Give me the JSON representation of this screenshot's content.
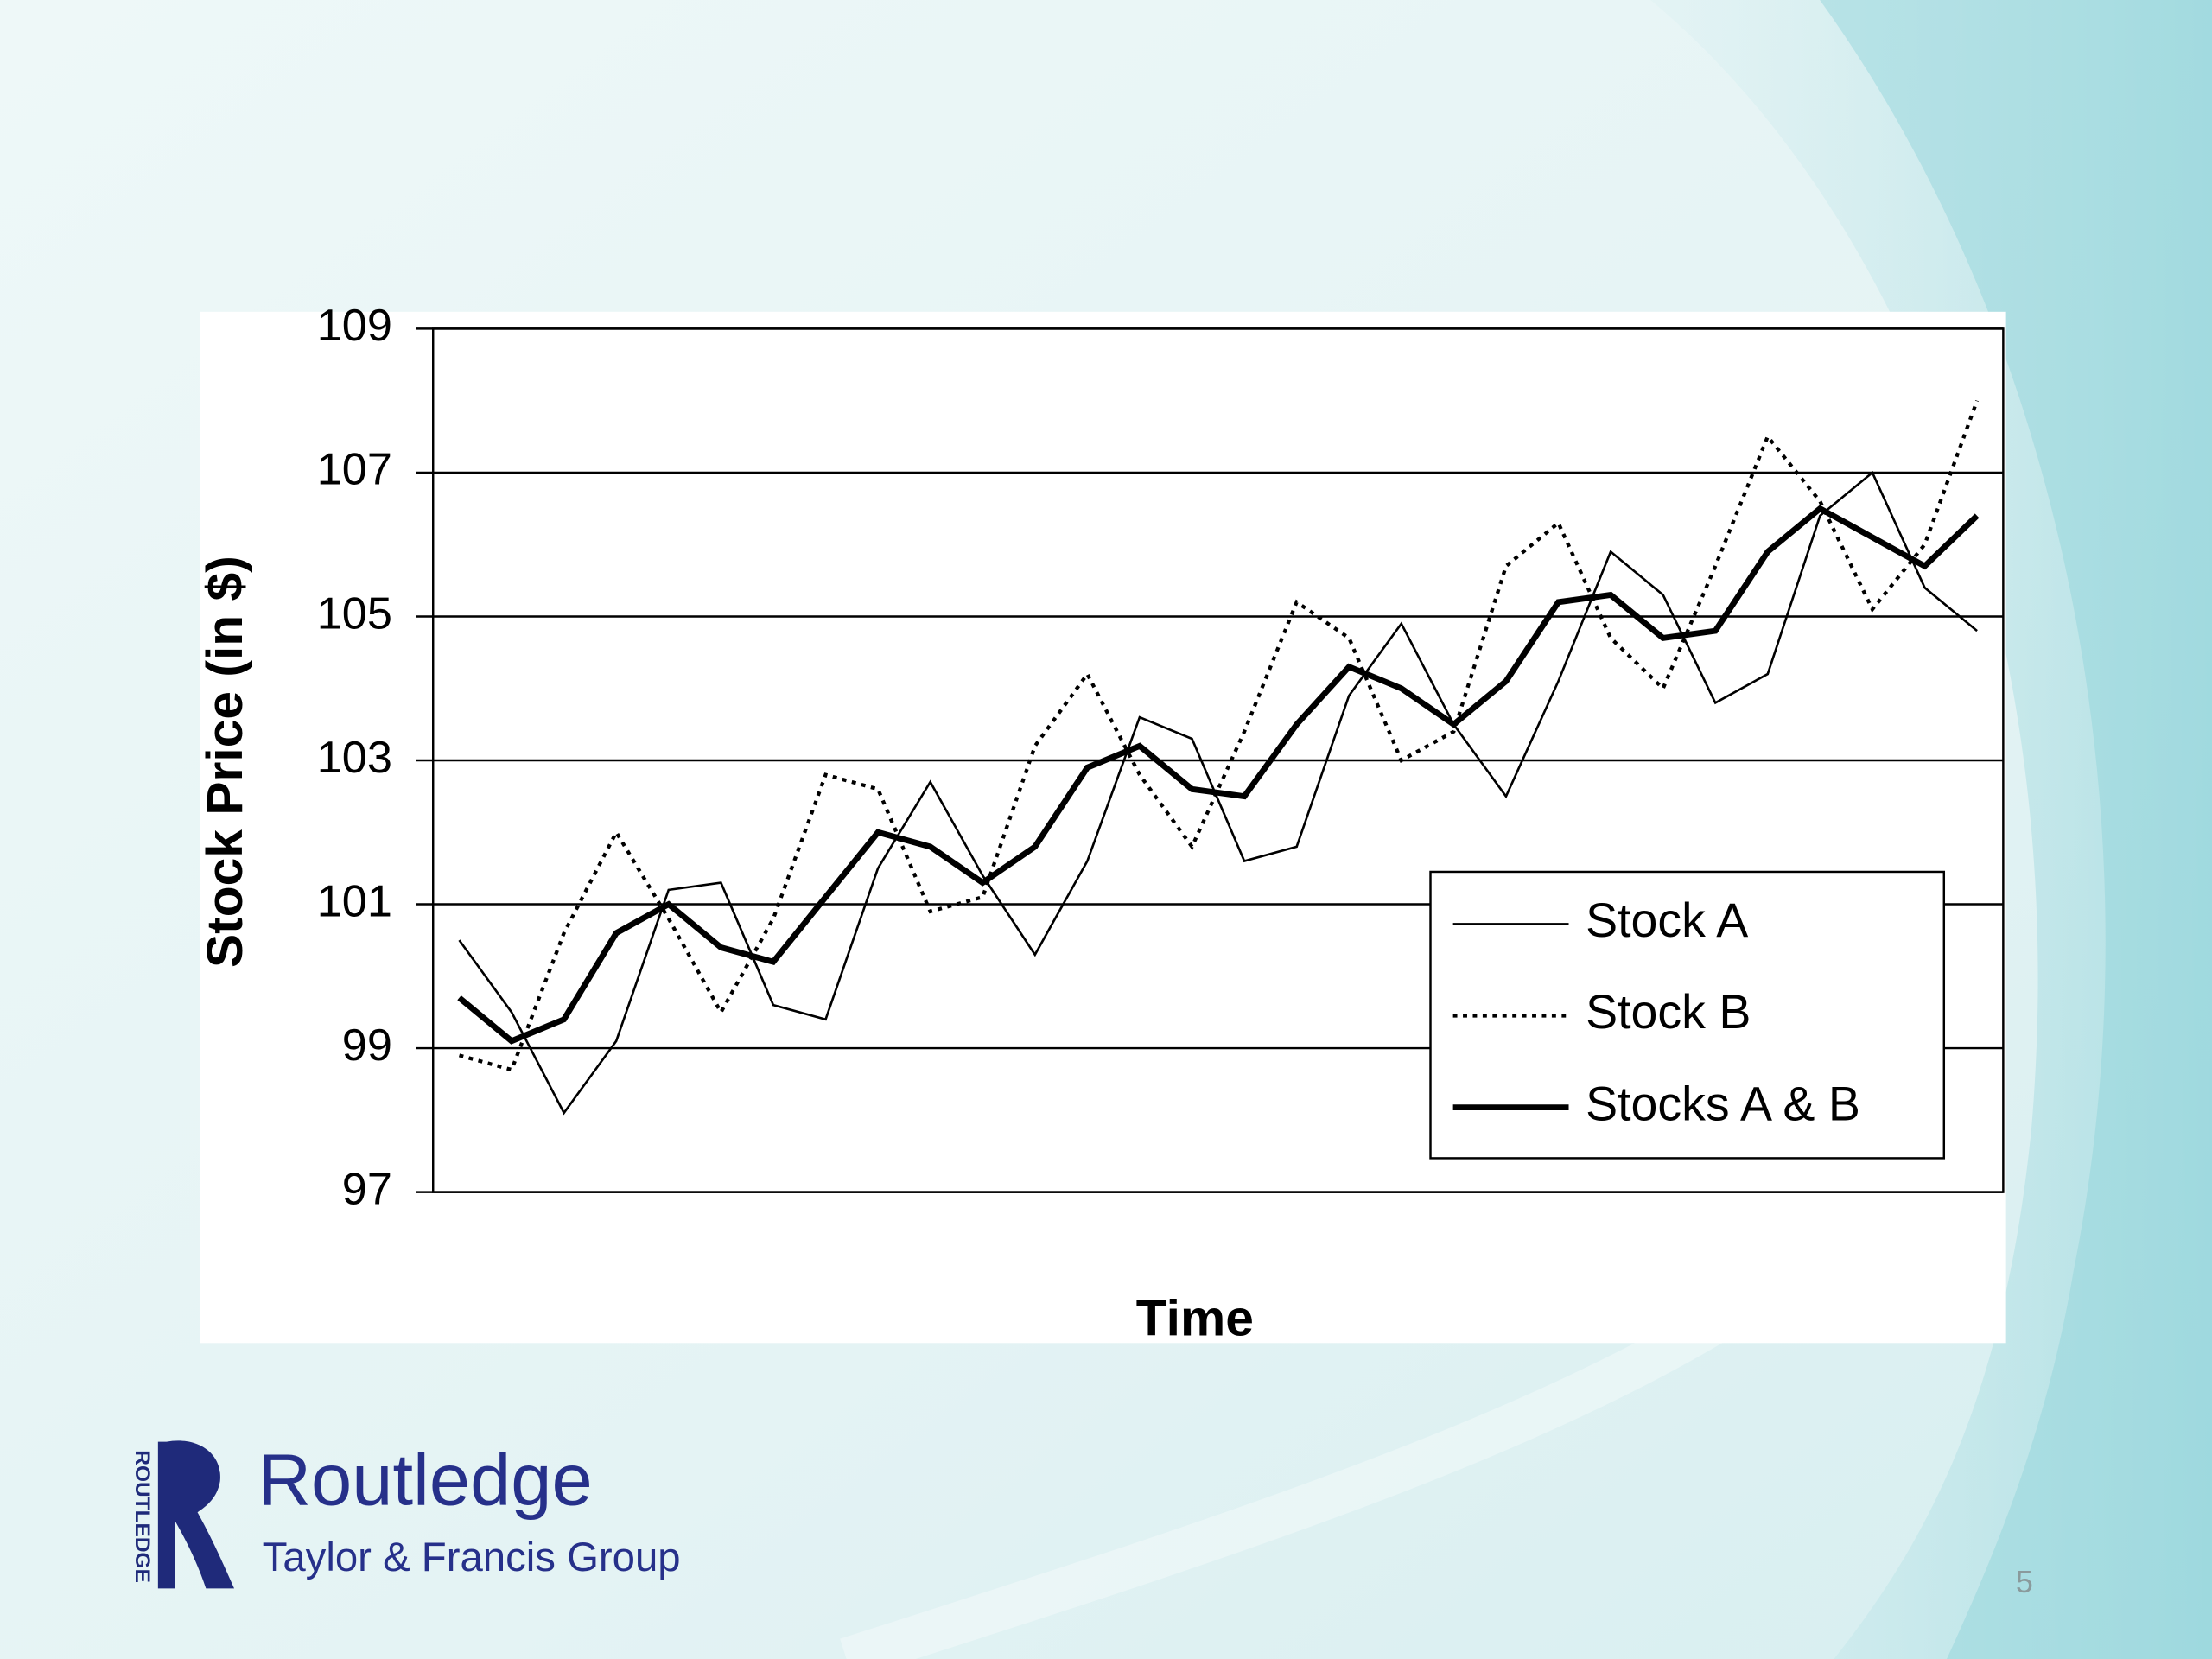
{
  "chart_data": {
    "type": "line",
    "ylabel": "Stock Price (in $)",
    "xlabel": "Time",
    "categories": [
      null,
      null,
      null,
      null,
      null,
      null,
      null,
      null,
      null,
      null,
      null,
      null,
      null,
      null,
      null,
      null,
      null,
      null,
      null,
      null,
      null,
      null,
      null,
      null,
      null,
      null,
      null,
      null,
      null,
      null
    ],
    "series": [
      {
        "name": "Stock A",
        "color": "#000000",
        "line_style": "thin",
        "values": [
          100.5,
          99.5,
          98.1,
          99.1,
          101.2,
          101.3,
          99.6,
          99.4,
          101.5,
          102.7,
          101.4,
          100.3,
          101.6,
          103.6,
          103.3,
          101.6,
          101.8,
          103.9,
          104.9,
          103.5,
          102.5,
          104.1,
          105.9,
          105.3,
          103.8,
          104.2,
          106.4,
          107.0,
          105.4,
          104.8
        ]
      },
      {
        "name": "Stock B",
        "color": "#000000",
        "line_style": "dotted",
        "values": [
          98.9,
          98.7,
          100.6,
          102.0,
          100.8,
          99.5,
          100.8,
          102.8,
          102.6,
          100.9,
          101.1,
          103.2,
          104.2,
          102.8,
          101.8,
          103.4,
          105.2,
          104.7,
          103.0,
          103.4,
          105.7,
          106.3,
          104.7,
          104.0,
          105.7,
          107.5,
          106.6,
          105.1,
          106.0,
          108.0
        ]
      },
      {
        "name": "Stocks A & B",
        "color": "#000000",
        "line_style": "thick",
        "values": [
          99.7,
          99.1,
          99.4,
          100.6,
          101.0,
          100.4,
          100.2,
          101.1,
          102.0,
          101.8,
          101.3,
          101.8,
          102.9,
          103.2,
          102.6,
          102.5,
          103.5,
          104.3,
          104.0,
          103.5,
          104.1,
          105.2,
          105.3,
          104.7,
          104.8,
          105.9,
          106.5,
          106.1,
          105.7,
          106.4
        ]
      }
    ],
    "ylim": [
      97,
      109
    ],
    "yticks": [
      97,
      99,
      101,
      103,
      105,
      107,
      109
    ],
    "grid": true,
    "legend": "lower right"
  },
  "footer": {
    "brand": "Routledge",
    "vertical_brand": "ROUTLEDGE",
    "tagline": "Taylor & Francis Group",
    "page_number": "5"
  }
}
